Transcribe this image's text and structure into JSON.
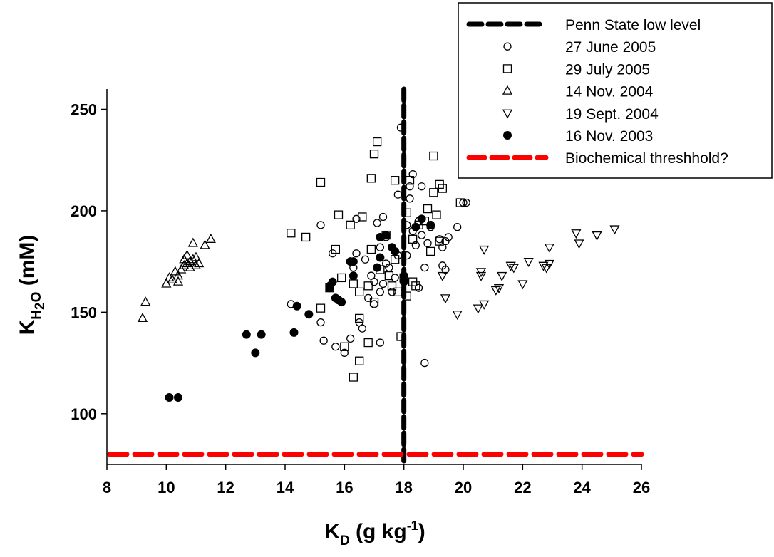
{
  "chart_data": {
    "type": "scatter",
    "title": "",
    "xlabel": {
      "main": "K",
      "sub": "D",
      "rest": " (g kg",
      "sup": "-1",
      "end": ")"
    },
    "ylabel": {
      "main": "K",
      "sub": "H",
      "sub2": "2",
      "sub3": "O",
      "rest": " (mM)"
    },
    "xlim": [
      8,
      26
    ],
    "ylim": [
      75,
      260
    ],
    "x_ticks": [
      8,
      10,
      12,
      14,
      16,
      18,
      20,
      22,
      24,
      26
    ],
    "y_ticks": [
      100,
      150,
      200,
      250
    ],
    "legend_position": "top-right",
    "reference_lines": [
      {
        "name": "Penn State low level",
        "orientation": "vertical",
        "value": 18,
        "color": "#000000"
      },
      {
        "name": "Biochemical threshhold?",
        "orientation": "horizontal",
        "value": 80,
        "color": "#ff0000"
      }
    ],
    "series": [
      {
        "name": "27 June 2005",
        "marker": "circle-open",
        "points": [
          [
            14.2,
            154
          ],
          [
            15.2,
            145
          ],
          [
            15.2,
            193
          ],
          [
            15.3,
            136
          ],
          [
            15.5,
            163
          ],
          [
            15.6,
            179
          ],
          [
            15.7,
            133
          ],
          [
            15.9,
            155
          ],
          [
            16.0,
            130
          ],
          [
            16.2,
            137
          ],
          [
            16.3,
            172
          ],
          [
            16.4,
            179
          ],
          [
            16.4,
            196
          ],
          [
            16.5,
            145
          ],
          [
            16.6,
            142
          ],
          [
            16.7,
            176
          ],
          [
            16.8,
            157
          ],
          [
            16.9,
            168
          ],
          [
            17.0,
            154
          ],
          [
            17.0,
            165
          ],
          [
            17.1,
            194
          ],
          [
            17.2,
            135
          ],
          [
            17.2,
            160
          ],
          [
            17.2,
            182
          ],
          [
            17.3,
            164
          ],
          [
            17.3,
            197
          ],
          [
            17.4,
            187
          ],
          [
            17.4,
            174
          ],
          [
            17.5,
            172
          ],
          [
            17.6,
            160
          ],
          [
            17.7,
            180
          ],
          [
            17.7,
            167
          ],
          [
            17.8,
            178
          ],
          [
            17.8,
            208
          ],
          [
            17.9,
            241
          ],
          [
            18.1,
            178
          ],
          [
            18.1,
            193
          ],
          [
            18.2,
            206
          ],
          [
            18.2,
            212
          ],
          [
            18.3,
            190
          ],
          [
            18.3,
            218
          ],
          [
            18.4,
            183
          ],
          [
            18.5,
            195
          ],
          [
            18.5,
            162
          ],
          [
            18.6,
            188
          ],
          [
            18.6,
            212
          ],
          [
            18.7,
            172
          ],
          [
            18.7,
            125
          ],
          [
            18.8,
            184
          ],
          [
            18.9,
            192
          ],
          [
            19.2,
            186
          ],
          [
            19.3,
            173
          ],
          [
            19.3,
            182
          ],
          [
            19.4,
            185
          ],
          [
            19.4,
            171
          ],
          [
            19.5,
            187
          ],
          [
            19.8,
            192
          ],
          [
            20.0,
            204
          ],
          [
            20.1,
            204
          ]
        ]
      },
      {
        "name": "29 July 2005",
        "marker": "square-open",
        "points": [
          [
            14.2,
            189
          ],
          [
            14.7,
            187
          ],
          [
            15.2,
            152
          ],
          [
            15.2,
            214
          ],
          [
            15.5,
            162
          ],
          [
            15.7,
            181
          ],
          [
            15.8,
            198
          ],
          [
            15.9,
            167
          ],
          [
            16.0,
            133
          ],
          [
            16.2,
            193
          ],
          [
            16.3,
            118
          ],
          [
            16.3,
            164
          ],
          [
            16.5,
            126
          ],
          [
            16.5,
            147
          ],
          [
            16.5,
            160
          ],
          [
            16.6,
            197
          ],
          [
            16.8,
            135
          ],
          [
            16.8,
            163
          ],
          [
            16.9,
            181
          ],
          [
            16.9,
            216
          ],
          [
            17.0,
            155
          ],
          [
            17.0,
            228
          ],
          [
            17.1,
            234
          ],
          [
            17.2,
            171
          ],
          [
            17.4,
            188
          ],
          [
            17.5,
            168
          ],
          [
            17.6,
            163
          ],
          [
            17.7,
            176
          ],
          [
            17.7,
            215
          ],
          [
            17.8,
            160
          ],
          [
            17.9,
            138
          ],
          [
            18.0,
            167
          ],
          [
            18.1,
            158
          ],
          [
            18.1,
            199
          ],
          [
            18.2,
            215
          ],
          [
            18.3,
            186
          ],
          [
            18.3,
            165
          ],
          [
            18.4,
            163
          ],
          [
            18.5,
            193
          ],
          [
            18.7,
            195
          ],
          [
            18.8,
            201
          ],
          [
            18.9,
            180
          ],
          [
            19.0,
            209
          ],
          [
            19.0,
            227
          ],
          [
            19.1,
            198
          ],
          [
            19.2,
            185
          ],
          [
            19.2,
            213
          ],
          [
            19.3,
            211
          ],
          [
            19.9,
            204
          ]
        ]
      },
      {
        "name": "14 Nov. 2004",
        "marker": "triangle-up-open",
        "points": [
          [
            9.2,
            147
          ],
          [
            9.3,
            155
          ],
          [
            10.0,
            164
          ],
          [
            10.1,
            167
          ],
          [
            10.2,
            166
          ],
          [
            10.3,
            170
          ],
          [
            10.4,
            168
          ],
          [
            10.5,
            171
          ],
          [
            10.6,
            173
          ],
          [
            10.6,
            176
          ],
          [
            10.7,
            174
          ],
          [
            10.7,
            178
          ],
          [
            10.8,
            175
          ],
          [
            10.8,
            172
          ],
          [
            10.9,
            184
          ],
          [
            11.0,
            177
          ],
          [
            11.0,
            173
          ],
          [
            11.1,
            174
          ],
          [
            11.3,
            183
          ],
          [
            11.5,
            186
          ],
          [
            10.4,
            165
          ],
          [
            10.9,
            176
          ]
        ]
      },
      {
        "name": "19 Sept. 2004",
        "marker": "triangle-down-open",
        "points": [
          [
            19.3,
            168
          ],
          [
            19.4,
            157
          ],
          [
            19.8,
            149
          ],
          [
            20.5,
            152
          ],
          [
            20.6,
            168
          ],
          [
            20.7,
            181
          ],
          [
            20.7,
            154
          ],
          [
            20.6,
            170
          ],
          [
            21.1,
            161
          ],
          [
            21.2,
            162
          ],
          [
            21.3,
            168
          ],
          [
            21.6,
            173
          ],
          [
            21.7,
            172
          ],
          [
            22.0,
            164
          ],
          [
            22.2,
            175
          ],
          [
            22.7,
            173
          ],
          [
            22.8,
            172
          ],
          [
            22.9,
            182
          ],
          [
            22.9,
            174
          ],
          [
            23.8,
            189
          ],
          [
            23.9,
            184
          ],
          [
            24.5,
            188
          ],
          [
            25.1,
            191
          ]
        ]
      },
      {
        "name": "16 Nov. 2003",
        "marker": "circle-filled",
        "points": [
          [
            10.1,
            108
          ],
          [
            10.4,
            108
          ],
          [
            12.7,
            139
          ],
          [
            13.0,
            130
          ],
          [
            13.2,
            139
          ],
          [
            14.3,
            140
          ],
          [
            14.4,
            153
          ],
          [
            14.8,
            149
          ],
          [
            15.5,
            162
          ],
          [
            15.6,
            165
          ],
          [
            15.7,
            157
          ],
          [
            15.8,
            156
          ],
          [
            15.9,
            155
          ],
          [
            16.2,
            175
          ],
          [
            16.3,
            168
          ],
          [
            16.3,
            175
          ],
          [
            17.1,
            172
          ],
          [
            17.2,
            177
          ],
          [
            17.2,
            187
          ],
          [
            17.4,
            188
          ],
          [
            17.6,
            182
          ],
          [
            17.7,
            180
          ],
          [
            18.0,
            165
          ],
          [
            18.0,
            168
          ],
          [
            18.4,
            192
          ],
          [
            18.6,
            196
          ],
          [
            18.9,
            193
          ]
        ]
      }
    ]
  }
}
